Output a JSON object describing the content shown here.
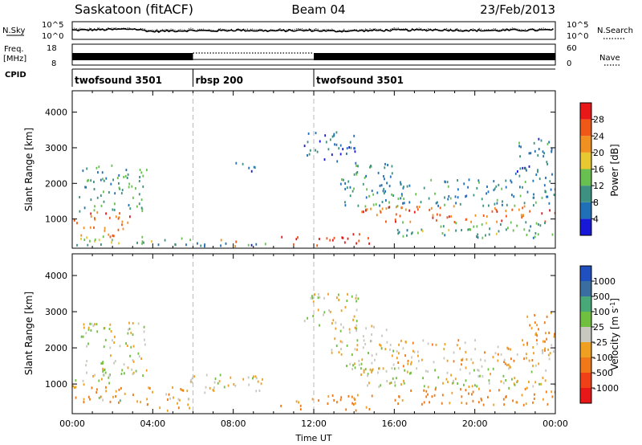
{
  "header": {
    "station": "Saskatoon (fitACF)",
    "beam": "Beam 04",
    "date": "23/Feb/2013"
  },
  "left_labels": {
    "nsky": "N.Sky",
    "freq_line1": "Freq.",
    "freq_line2": "[MHz]",
    "cpid": "CPID"
  },
  "right_labels": {
    "nsearch": "N.Search",
    "nave": "Nave"
  },
  "chart_data": [
    {
      "type": "line",
      "panel": "noise",
      "ylabel": "N.Sky",
      "yticks_left": [
        "10^5",
        "10^0"
      ],
      "yticks_right": [
        "10^5",
        "10^0"
      ],
      "right_label": "N.Search",
      "series": [
        {
          "name": "N.Sky",
          "style": "solid"
        },
        {
          "name": "N.Search",
          "style": "dotted"
        }
      ],
      "x": [
        0,
        1,
        2,
        3,
        4,
        5,
        6,
        7,
        8,
        9,
        10,
        11,
        12,
        13,
        14,
        15,
        16,
        17,
        18,
        19,
        20,
        21,
        22,
        23,
        24
      ],
      "nsky_log": [
        2.6,
        2.7,
        2.8,
        3.0,
        2.2,
        2.4,
        2.5,
        2.4,
        2.6,
        2.5,
        2.4,
        2.5,
        2.5,
        2.3,
        2.4,
        2.5,
        2.6,
        2.6,
        2.7,
        2.6,
        2.5,
        2.5,
        2.6,
        2.6,
        2.7
      ]
    },
    {
      "type": "line",
      "panel": "frequency",
      "ylabel": "Freq. [MHz]",
      "yticks_left": [
        "18",
        "8"
      ],
      "yticks_right": [
        "60",
        "0"
      ],
      "right_label": "Nave",
      "segments": [
        {
          "start": 0,
          "end": 6,
          "style": "solid"
        },
        {
          "start": 6,
          "end": 12,
          "style": "dotted"
        },
        {
          "start": 12,
          "end": 24,
          "style": "solid"
        }
      ]
    },
    {
      "type": "table",
      "panel": "cpid",
      "label": "CPID",
      "segments": [
        {
          "start": 0,
          "end": 6,
          "name": "twofsound 3501"
        },
        {
          "start": 6,
          "end": 12,
          "name": "rbsp 200"
        },
        {
          "start": 12,
          "end": 24,
          "name": "twofsound 3501"
        }
      ]
    },
    {
      "type": "heatmap",
      "panel": "power",
      "ylabel": "Slant Range [km]",
      "xlim": [
        0,
        24
      ],
      "ylim": [
        180,
        4600
      ],
      "yticks": [
        1000,
        2000,
        3000,
        4000
      ],
      "colorbar": {
        "label": "Power [dB]",
        "ticks": [
          "4",
          "8",
          "12",
          "16",
          "20",
          "24",
          "28"
        ],
        "colors": [
          "#1818d8",
          "#2070b8",
          "#3e9080",
          "#68c050",
          "#e8c830",
          "#f09020",
          "#f05818",
          "#e81818"
        ]
      },
      "bands": [
        {
          "t0": 0.0,
          "t1": 2.9,
          "r0": 820,
          "r1": 1220,
          "v": 27
        },
        {
          "t0": 0.0,
          "t1": 2.5,
          "r0": 480,
          "r1": 780,
          "v": 24
        },
        {
          "t0": 0.3,
          "t1": 3.7,
          "r0": 1200,
          "r1": 2500,
          "v": 11
        },
        {
          "t0": 0.2,
          "t1": 4.6,
          "r0": 250,
          "r1": 520,
          "v": 15
        },
        {
          "t0": 3.4,
          "t1": 6.0,
          "r0": 220,
          "r1": 450,
          "v": 10
        },
        {
          "t0": 6.0,
          "t1": 10.7,
          "r0": 200,
          "r1": 330,
          "v": 8
        },
        {
          "t0": 7.3,
          "t1": 8.2,
          "r0": 220,
          "r1": 420,
          "v": 26
        },
        {
          "t0": 10.1,
          "t1": 11.2,
          "r0": 260,
          "r1": 480,
          "v": 27
        },
        {
          "t0": 11.8,
          "t1": 14.8,
          "r0": 230,
          "r1": 580,
          "v": 29
        },
        {
          "t0": 11.5,
          "t1": 14.2,
          "r0": 2600,
          "r1": 3450,
          "v": 7
        },
        {
          "t0": 13.3,
          "t1": 16.0,
          "r0": 1300,
          "r1": 2600,
          "v": 9
        },
        {
          "t0": 14.2,
          "t1": 24.0,
          "r0": 900,
          "r1": 1350,
          "v": 25
        },
        {
          "t0": 15.2,
          "t1": 24.0,
          "r0": 1350,
          "r1": 2100,
          "v": 9
        },
        {
          "t0": 16.0,
          "t1": 24.0,
          "r0": 450,
          "r1": 900,
          "v": 12
        },
        {
          "t0": 22.0,
          "t1": 24.0,
          "r0": 2100,
          "r1": 3300,
          "v": 8
        },
        {
          "t0": 8.0,
          "t1": 9.2,
          "r0": 2300,
          "r1": 2600,
          "v": 6
        }
      ]
    },
    {
      "type": "heatmap",
      "panel": "velocity",
      "ylabel": "Slant Range [km]",
      "xlabel": "Time UT",
      "xlim": [
        0,
        24
      ],
      "ylim": [
        180,
        4600
      ],
      "yticks": [
        1000,
        2000,
        3000,
        4000
      ],
      "xticks": [
        "00:00",
        "04:00",
        "08:00",
        "12:00",
        "16:00",
        "20:00",
        "00:00"
      ],
      "colorbar": {
        "label": "Velocity [m s^-1]",
        "ticks": [
          "1000",
          "500",
          "100",
          "25",
          "-25",
          "-100",
          "-500",
          "-1000"
        ],
        "colors": [
          "#2050c0",
          "#3a6ea0",
          "#48a878",
          "#70c040",
          "#c8c8c0",
          "#f0a020",
          "#f07818",
          "#f04018",
          "#e81818"
        ]
      },
      "bands": [
        {
          "t0": 0.0,
          "t1": 3.0,
          "r0": 450,
          "r1": 900,
          "v": -120
        },
        {
          "t0": 0.0,
          "t1": 2.4,
          "r0": 900,
          "r1": 1250,
          "v": 0
        },
        {
          "t0": 0.4,
          "t1": 3.7,
          "r0": 1200,
          "r1": 2700,
          "v": 0
        },
        {
          "t0": 1.0,
          "t1": 2.4,
          "r0": 500,
          "r1": 650,
          "v": 60
        },
        {
          "t0": 3.0,
          "t1": 5.8,
          "r0": 250,
          "r1": 900,
          "v": -80
        },
        {
          "t0": 5.5,
          "t1": 9.5,
          "r0": 700,
          "r1": 1250,
          "v": 0
        },
        {
          "t0": 10.2,
          "t1": 11.5,
          "r0": 250,
          "r1": 520,
          "v": -150
        },
        {
          "t0": 11.8,
          "t1": 15.0,
          "r0": 250,
          "r1": 700,
          "v": -120
        },
        {
          "t0": 11.5,
          "t1": 14.2,
          "r0": 2500,
          "r1": 3500,
          "v": 0
        },
        {
          "t0": 12.8,
          "t1": 16.0,
          "r0": 1300,
          "r1": 2600,
          "v": 0
        },
        {
          "t0": 14.3,
          "t1": 24.0,
          "r0": 850,
          "r1": 1450,
          "v": 0
        },
        {
          "t0": 15.5,
          "t1": 24.0,
          "r0": 1450,
          "r1": 2200,
          "v": -60
        },
        {
          "t0": 15.8,
          "t1": 24.0,
          "r0": 400,
          "r1": 850,
          "v": -150
        },
        {
          "t0": 22.5,
          "t1": 24.0,
          "r0": 2000,
          "r1": 3000,
          "v": -120
        }
      ]
    }
  ]
}
